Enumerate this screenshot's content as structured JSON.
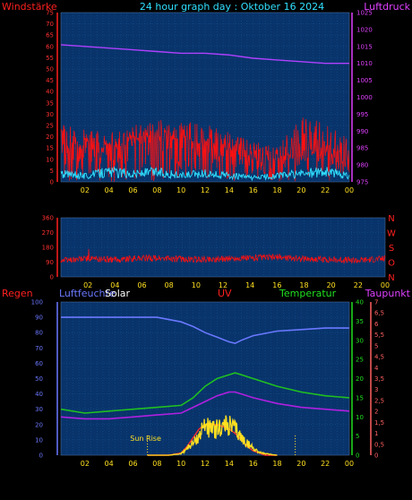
{
  "title": "24 hour graph day : Oktober 16 2024",
  "labels": {
    "wind": "Windstärke",
    "pressure": "Luftdruck",
    "rain": "Regen",
    "humidity": "Luftfeuchte",
    "solar": "Solar",
    "uv": "UV",
    "temperature": "Temperatur",
    "dewpoint": "Taupunkt",
    "sunrise": "Sun Rise"
  },
  "colors": {
    "plot_bg": "#08346b",
    "grid": "#1e5a9c",
    "wind": "#ff1010",
    "gust": "#ff1010",
    "windavg": "#30e0ff",
    "pressure": "#b040ff",
    "humidity": "#6a78ff",
    "temperature": "#20c020",
    "dewpoint": "#b020e0",
    "solar": "#ffe020",
    "uv": "#ff3030",
    "sunrise": "#ffe020"
  },
  "chart_data": [
    {
      "type": "line",
      "name": "wind-pressure",
      "x_ticks": [
        "02",
        "04",
        "06",
        "08",
        "10",
        "12",
        "14",
        "16",
        "18",
        "20",
        "22",
        "00"
      ],
      "y_left_ticks": [
        "75",
        "70",
        "65",
        "60",
        "55",
        "50",
        "45",
        "40",
        "35",
        "30",
        "25",
        "20",
        "15",
        "10",
        "5",
        "0"
      ],
      "y_left_range": [
        0,
        75
      ],
      "y_right_ticks": [
        "1025",
        "1020",
        "1015",
        "1010",
        "1005",
        "1000",
        "995",
        "990",
        "985",
        "980",
        "975"
      ],
      "y_right_range": [
        975,
        1025
      ],
      "series": [
        {
          "key": "pressure",
          "axis": "right",
          "x": [
            0,
            2,
            4,
            6,
            8,
            10,
            12,
            14,
            16,
            18,
            20,
            22,
            24
          ],
          "values": [
            1015.5,
            1015.0,
            1014.5,
            1014.0,
            1013.5,
            1013.0,
            1013.0,
            1012.5,
            1011.5,
            1011.0,
            1010.5,
            1010.0,
            1010.0
          ]
        },
        {
          "key": "wind",
          "axis": "left",
          "style": "spiky",
          "x": [
            0,
            2,
            4,
            6,
            8,
            10,
            12,
            14,
            16,
            18,
            20,
            22,
            24
          ],
          "values": [
            12,
            14,
            13,
            16,
            18,
            15,
            14,
            12,
            10,
            8,
            10,
            12,
            8
          ],
          "peaks": [
            26,
            24,
            22,
            25,
            28,
            27,
            26,
            22,
            18,
            16,
            30,
            26,
            20
          ]
        },
        {
          "key": "windavg",
          "axis": "left",
          "style": "noisy",
          "x": [
            0,
            2,
            4,
            6,
            8,
            10,
            12,
            14,
            16,
            18,
            20,
            22,
            24
          ],
          "values": [
            4,
            3,
            5,
            4,
            5,
            3,
            4,
            3,
            2,
            3,
            4,
            5,
            3
          ]
        }
      ]
    },
    {
      "type": "line",
      "name": "wind-direction",
      "x_ticks": [
        "02",
        "04",
        "06",
        "08",
        "10",
        "12",
        "14",
        "16",
        "18",
        "20",
        "22",
        "00"
      ],
      "y_left_ticks": [
        "360",
        "270",
        "180",
        "90",
        "0"
      ],
      "y_left_range": [
        0,
        360
      ],
      "y_right_ticks": [
        "N",
        "W",
        "S",
        "O",
        "N"
      ],
      "series": [
        {
          "key": "wind",
          "axis": "left",
          "style": "noisy",
          "x": [
            0,
            2,
            4,
            6,
            8,
            10,
            12,
            14,
            16,
            18,
            20,
            22,
            24
          ],
          "values": [
            100,
            110,
            105,
            115,
            110,
            105,
            110,
            115,
            120,
            110,
            105,
            100,
            110
          ]
        }
      ]
    },
    {
      "type": "line",
      "name": "humidity-solar-uv-temperature",
      "x_ticks": [
        "02",
        "04",
        "06",
        "08",
        "10",
        "12",
        "14",
        "16",
        "18",
        "20",
        "22",
        "00"
      ],
      "y_left_ticks": [
        "100",
        "90",
        "80",
        "70",
        "60",
        "50",
        "40",
        "30",
        "20",
        "10",
        "0"
      ],
      "y_left_range": [
        0,
        100
      ],
      "y_right_temp_ticks": [
        "40",
        "35",
        "30",
        "25",
        "20",
        "15",
        "10",
        "5",
        "0"
      ],
      "y_right_temp_range": [
        0,
        40
      ],
      "y_right_uv_ticks": [
        "7",
        "6,5",
        "6",
        "5,5",
        "5",
        "4,5",
        "4",
        "3,5",
        "3",
        "2,5",
        "2",
        "1,5",
        "1",
        "0,5",
        "0"
      ],
      "y_right_uv_range": [
        0,
        7
      ],
      "series": [
        {
          "key": "humidity",
          "axis": "left",
          "x": [
            0,
            2,
            4,
            6,
            8,
            10,
            11,
            12,
            13,
            14,
            14.5,
            15,
            16,
            18,
            20,
            22,
            24
          ],
          "values": [
            90,
            90,
            90,
            90,
            90,
            87,
            84,
            80,
            77,
            74,
            73,
            75,
            78,
            81,
            82,
            83,
            83
          ]
        },
        {
          "key": "temperature",
          "axis": "temp",
          "x": [
            0,
            2,
            4,
            6,
            8,
            10,
            11,
            12,
            13,
            14,
            14.5,
            15,
            16,
            18,
            20,
            22,
            24
          ],
          "values": [
            12,
            11,
            11.5,
            12,
            12.5,
            13,
            15,
            18,
            20,
            21,
            21.5,
            21,
            20,
            18,
            16.5,
            15.5,
            15
          ]
        },
        {
          "key": "dewpoint",
          "axis": "temp",
          "x": [
            0,
            2,
            4,
            6,
            8,
            10,
            11,
            12,
            13,
            14,
            14.5,
            15,
            16,
            18,
            20,
            22,
            24
          ],
          "values": [
            10,
            9.5,
            9.5,
            10,
            10.5,
            11,
            12.5,
            14,
            15.5,
            16.5,
            16.5,
            16,
            15,
            13.5,
            12.5,
            12,
            11.5
          ]
        },
        {
          "key": "solar",
          "axis": "left",
          "style": "noisy",
          "x": [
            7.2,
            9,
            10,
            10.5,
            11,
            11.5,
            12,
            12.5,
            13,
            13.5,
            14,
            14.5,
            15,
            15.5,
            16,
            16.5,
            17,
            17.5,
            18
          ],
          "values": [
            0,
            0,
            1,
            5,
            8,
            13,
            22,
            17,
            18,
            20,
            20,
            18,
            12,
            8,
            5,
            2,
            1,
            0.5,
            0
          ]
        },
        {
          "key": "uv",
          "axis": "uv",
          "x": [
            7.2,
            9,
            10,
            10.5,
            11,
            11.5,
            12,
            12.5,
            13,
            13.5,
            14,
            14.5,
            15,
            15.5,
            16,
            16.5,
            17,
            17.5,
            18
          ],
          "values": [
            0,
            0,
            0.1,
            0.4,
            0.8,
            1.2,
            1.4,
            1.4,
            1.4,
            1.3,
            1.2,
            1.0,
            0.7,
            0.4,
            0.2,
            0.1,
            0,
            0,
            0
          ]
        }
      ],
      "markers": [
        {
          "label_key": "sunrise",
          "x": 7.2
        },
        {
          "x": 19.5
        }
      ]
    }
  ]
}
